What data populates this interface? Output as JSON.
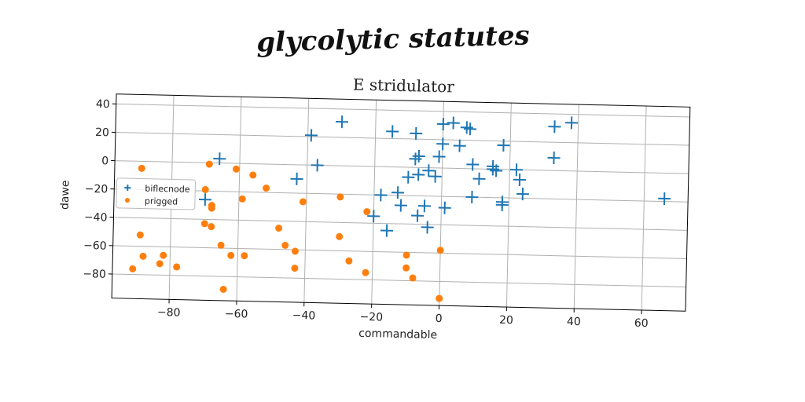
{
  "heading": "glycolytic statutes",
  "chart_data": {
    "type": "scatter",
    "title": "E stridulator",
    "xlabel": "commandable",
    "ylabel": "dawe",
    "xlim": [
      -97,
      73
    ],
    "ylim": [
      -97,
      47
    ],
    "xticks": [
      -80,
      -60,
      -40,
      -20,
      0,
      20,
      40,
      60
    ],
    "yticks": [
      40,
      20,
      0,
      -20,
      -40,
      -60,
      -80
    ],
    "grid": true,
    "legend_position": "center-left",
    "series": [
      {
        "name": "biflecnode",
        "marker": "plus",
        "color": "#1f77b4",
        "points": [
          [
            -30,
            31
          ],
          [
            -15,
            25
          ],
          [
            -8,
            24
          ],
          [
            0,
            31
          ],
          [
            3,
            32
          ],
          [
            7,
            29
          ],
          [
            8,
            28
          ],
          [
            18,
            17
          ],
          [
            33,
            31
          ],
          [
            38,
            34
          ],
          [
            -39,
            21
          ],
          [
            33,
            9
          ],
          [
            -37,
            0
          ],
          [
            -43,
            -10
          ],
          [
            -66,
            3
          ],
          [
            -70,
            -26
          ],
          [
            -20,
            -35
          ],
          [
            -18,
            -20
          ],
          [
            -13,
            -18
          ],
          [
            -16,
            -45
          ],
          [
            -12,
            -27
          ],
          [
            -10,
            -7
          ],
          [
            -7,
            -5
          ],
          [
            -8,
            6
          ],
          [
            -7,
            8
          ],
          [
            -4,
            -2
          ],
          [
            -2,
            -6
          ],
          [
            -1,
            8
          ],
          [
            0,
            17
          ],
          [
            5,
            16
          ],
          [
            9,
            3
          ],
          [
            11,
            -7
          ],
          [
            15,
            2
          ],
          [
            15,
            0
          ],
          [
            16,
            -1
          ],
          [
            9,
            -20
          ],
          [
            18,
            -23
          ],
          [
            18,
            -25
          ],
          [
            22,
            0
          ],
          [
            23,
            -7
          ],
          [
            24,
            -17
          ],
          [
            -5,
            -27
          ],
          [
            -4,
            -42
          ],
          [
            1,
            -28
          ],
          [
            66,
            -18
          ],
          [
            -7,
            -34
          ]
        ]
      },
      {
        "name": "prigged",
        "marker": "dot",
        "color": "#ff7f0e",
        "points": [
          [
            -89,
            -5
          ],
          [
            -89,
            -52
          ],
          [
            -88,
            -67
          ],
          [
            -91,
            -76
          ],
          [
            -83,
            -72
          ],
          [
            -82,
            -66
          ],
          [
            -78,
            -74
          ],
          [
            -70,
            -19
          ],
          [
            -70,
            -43
          ],
          [
            -68,
            -45
          ],
          [
            -68,
            -30
          ],
          [
            -68,
            -32
          ],
          [
            -69,
            -1
          ],
          [
            -65,
            -58
          ],
          [
            -64,
            -89
          ],
          [
            -62,
            -65
          ],
          [
            -61,
            -4
          ],
          [
            -59,
            -25
          ],
          [
            -58,
            -65
          ],
          [
            -56,
            -8
          ],
          [
            -52,
            -17
          ],
          [
            -48,
            -45
          ],
          [
            -46,
            -57
          ],
          [
            -43,
            -73
          ],
          [
            -43,
            -61
          ],
          [
            -41,
            -26
          ],
          [
            -30,
            -22
          ],
          [
            -30,
            -50
          ],
          [
            -27,
            -67
          ],
          [
            -22,
            -32
          ],
          [
            -22,
            -75
          ],
          [
            -10,
            -62
          ],
          [
            -10,
            -71
          ],
          [
            -8,
            -78
          ],
          [
            0,
            -58
          ],
          [
            0,
            -92
          ]
        ]
      }
    ]
  }
}
